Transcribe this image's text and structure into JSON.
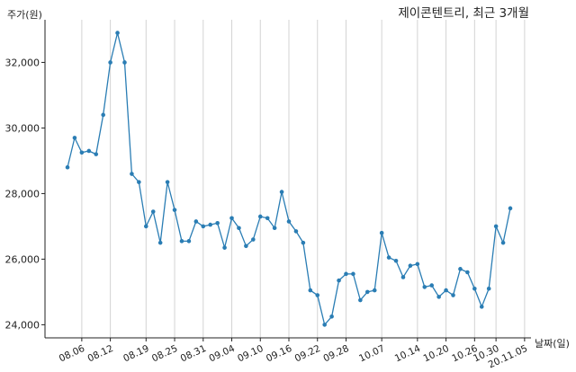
{
  "chart_data": {
    "type": "line",
    "title": "제이콘텐트리, 최근 3개월",
    "ylabel": "주가(원)",
    "xlabel": "날짜(일)",
    "ylim": [
      23600,
      33300
    ],
    "yticks": [
      24000,
      26000,
      28000,
      30000,
      32000
    ],
    "ytick_labels": [
      "24,000",
      "26,000",
      "28,000",
      "30,000",
      "32,000"
    ],
    "xtick_labels": [
      "08.06",
      "08.12",
      "08.19",
      "08.25",
      "08.31",
      "09.04",
      "09.10",
      "09.16",
      "09.22",
      "09.28",
      "10.07",
      "10.14",
      "10.20",
      "10.26",
      "10.30",
      "20.11.05"
    ],
    "xtick_index": [
      2,
      6,
      11,
      15,
      19,
      23,
      27,
      31,
      35,
      39,
      44,
      49,
      53,
      57,
      60,
      64
    ],
    "grid": "vertical",
    "color": "#2a7db4",
    "series": [
      {
        "values": [
          28800,
          29700,
          29250,
          29300,
          29200,
          30400,
          32000,
          32900,
          32000,
          28600,
          28350,
          27000,
          27450,
          26500,
          28350,
          27500,
          26550,
          26550,
          27150,
          27000,
          27050,
          27100,
          26350,
          27250,
          26950,
          26400,
          26600,
          27300,
          27250,
          26950,
          28050,
          27150,
          26850,
          26500,
          25050,
          24900,
          24000,
          24250,
          25350,
          25550,
          25550,
          24750,
          25000,
          25050,
          26800,
          26050,
          25950,
          25450,
          25800,
          25850,
          25150,
          25200,
          24850,
          25050,
          24900,
          25700,
          25600,
          25100,
          24550,
          25100,
          27000,
          26500,
          27550
        ]
      }
    ]
  }
}
